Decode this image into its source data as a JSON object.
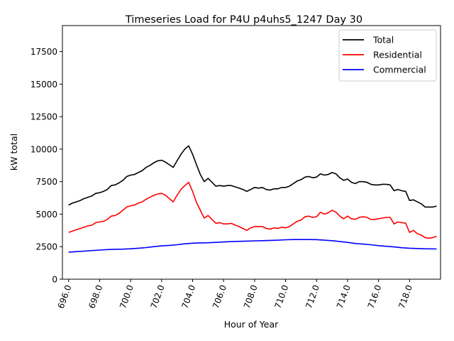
{
  "chart_data": {
    "type": "line",
    "title": "Timeseries Load for P4U p4uhs5_1247  Day 30",
    "xlabel": "Hour of Year",
    "ylabel": "kW total",
    "xlim": [
      695.6,
      720.0
    ],
    "ylim": [
      0,
      19500
    ],
    "xticks": [
      696,
      698,
      700,
      702,
      704,
      706,
      708,
      710,
      712,
      714,
      716,
      718
    ],
    "xtick_labels": [
      "696.0",
      "698.0",
      "700.0",
      "702.0",
      "704.0",
      "706.0",
      "708.0",
      "710.0",
      "712.0",
      "714.0",
      "716.0",
      "718.0"
    ],
    "yticks": [
      0,
      2500,
      5000,
      7500,
      10000,
      12500,
      15000,
      17500
    ],
    "ytick_labels": [
      "0",
      "2500",
      "5000",
      "7500",
      "10000",
      "12500",
      "15000",
      "17500"
    ],
    "legend_position": "top-right",
    "grid": false,
    "series": [
      {
        "name": "Total",
        "color": "#000000",
        "points": [
          [
            696.0,
            5700
          ],
          [
            696.25,
            5850
          ],
          [
            696.5,
            5950
          ],
          [
            696.75,
            6050
          ],
          [
            697.0,
            6200
          ],
          [
            697.25,
            6300
          ],
          [
            697.5,
            6400
          ],
          [
            697.75,
            6600
          ],
          [
            698.0,
            6650
          ],
          [
            698.25,
            6750
          ],
          [
            698.5,
            6900
          ],
          [
            698.75,
            7200
          ],
          [
            699.0,
            7250
          ],
          [
            699.25,
            7400
          ],
          [
            699.5,
            7600
          ],
          [
            699.75,
            7900
          ],
          [
            700.0,
            8000
          ],
          [
            700.25,
            8050
          ],
          [
            700.5,
            8200
          ],
          [
            700.75,
            8350
          ],
          [
            701.0,
            8600
          ],
          [
            701.25,
            8750
          ],
          [
            701.5,
            8950
          ],
          [
            701.75,
            9100
          ],
          [
            702.0,
            9150
          ],
          [
            702.25,
            9000
          ],
          [
            702.5,
            8800
          ],
          [
            702.75,
            8600
          ],
          [
            703.0,
            9100
          ],
          [
            703.25,
            9600
          ],
          [
            703.5,
            10000
          ],
          [
            703.75,
            10250
          ],
          [
            704.0,
            9600
          ],
          [
            704.25,
            8800
          ],
          [
            704.5,
            8050
          ],
          [
            704.75,
            7500
          ],
          [
            705.0,
            7750
          ],
          [
            705.25,
            7450
          ],
          [
            705.5,
            7150
          ],
          [
            705.75,
            7200
          ],
          [
            706.0,
            7150
          ],
          [
            706.25,
            7200
          ],
          [
            706.5,
            7200
          ],
          [
            706.75,
            7100
          ],
          [
            707.0,
            7000
          ],
          [
            707.25,
            6900
          ],
          [
            707.5,
            6750
          ],
          [
            707.75,
            6900
          ],
          [
            708.0,
            7050
          ],
          [
            708.25,
            7000
          ],
          [
            708.5,
            7050
          ],
          [
            708.75,
            6900
          ],
          [
            709.0,
            6850
          ],
          [
            709.25,
            6950
          ],
          [
            709.5,
            6950
          ],
          [
            709.75,
            7050
          ],
          [
            710.0,
            7050
          ],
          [
            710.25,
            7150
          ],
          [
            710.5,
            7350
          ],
          [
            710.75,
            7550
          ],
          [
            711.0,
            7650
          ],
          [
            711.25,
            7850
          ],
          [
            711.5,
            7900
          ],
          [
            711.75,
            7800
          ],
          [
            712.0,
            7850
          ],
          [
            712.25,
            8100
          ],
          [
            712.5,
            8000
          ],
          [
            712.75,
            8050
          ],
          [
            713.0,
            8200
          ],
          [
            713.25,
            8100
          ],
          [
            713.5,
            7800
          ],
          [
            713.75,
            7600
          ],
          [
            714.0,
            7700
          ],
          [
            714.25,
            7450
          ],
          [
            714.5,
            7350
          ],
          [
            714.75,
            7500
          ],
          [
            715.0,
            7500
          ],
          [
            715.25,
            7450
          ],
          [
            715.5,
            7300
          ],
          [
            715.75,
            7250
          ],
          [
            716.0,
            7250
          ],
          [
            716.25,
            7300
          ],
          [
            716.5,
            7300
          ],
          [
            716.75,
            7250
          ],
          [
            717.0,
            6800
          ],
          [
            717.25,
            6900
          ],
          [
            717.5,
            6800
          ],
          [
            717.75,
            6750
          ],
          [
            718.0,
            6050
          ],
          [
            718.25,
            6100
          ],
          [
            718.5,
            5950
          ],
          [
            718.75,
            5800
          ],
          [
            719.0,
            5550
          ],
          [
            719.25,
            5550
          ],
          [
            719.5,
            5550
          ],
          [
            719.75,
            5620
          ]
        ]
      },
      {
        "name": "Residential",
        "color": "#ff0000",
        "points": [
          [
            696.0,
            3600
          ],
          [
            696.25,
            3700
          ],
          [
            696.5,
            3800
          ],
          [
            696.75,
            3900
          ],
          [
            697.0,
            4000
          ],
          [
            697.25,
            4100
          ],
          [
            697.5,
            4150
          ],
          [
            697.75,
            4350
          ],
          [
            698.0,
            4400
          ],
          [
            698.25,
            4450
          ],
          [
            698.5,
            4600
          ],
          [
            698.75,
            4850
          ],
          [
            699.0,
            4900
          ],
          [
            699.25,
            5050
          ],
          [
            699.5,
            5300
          ],
          [
            699.75,
            5550
          ],
          [
            700.0,
            5650
          ],
          [
            700.25,
            5700
          ],
          [
            700.5,
            5850
          ],
          [
            700.75,
            5950
          ],
          [
            701.0,
            6150
          ],
          [
            701.25,
            6300
          ],
          [
            701.5,
            6450
          ],
          [
            701.75,
            6550
          ],
          [
            702.0,
            6600
          ],
          [
            702.25,
            6450
          ],
          [
            702.5,
            6200
          ],
          [
            702.75,
            5950
          ],
          [
            703.0,
            6450
          ],
          [
            703.25,
            6900
          ],
          [
            703.5,
            7200
          ],
          [
            703.75,
            7450
          ],
          [
            704.0,
            6750
          ],
          [
            704.25,
            5900
          ],
          [
            704.5,
            5300
          ],
          [
            704.75,
            4700
          ],
          [
            705.0,
            4900
          ],
          [
            705.25,
            4600
          ],
          [
            705.5,
            4300
          ],
          [
            705.75,
            4350
          ],
          [
            706.0,
            4250
          ],
          [
            706.25,
            4250
          ],
          [
            706.5,
            4300
          ],
          [
            706.75,
            4150
          ],
          [
            707.0,
            4050
          ],
          [
            707.25,
            3900
          ],
          [
            707.5,
            3750
          ],
          [
            707.75,
            3950
          ],
          [
            708.0,
            4050
          ],
          [
            708.25,
            4050
          ],
          [
            708.5,
            4050
          ],
          [
            708.75,
            3900
          ],
          [
            709.0,
            3850
          ],
          [
            709.25,
            3950
          ],
          [
            709.5,
            3900
          ],
          [
            709.75,
            4000
          ],
          [
            710.0,
            3950
          ],
          [
            710.25,
            4050
          ],
          [
            710.5,
            4250
          ],
          [
            710.75,
            4450
          ],
          [
            711.0,
            4550
          ],
          [
            711.25,
            4800
          ],
          [
            711.5,
            4850
          ],
          [
            711.75,
            4750
          ],
          [
            712.0,
            4800
          ],
          [
            712.25,
            5150
          ],
          [
            712.5,
            5000
          ],
          [
            712.75,
            5100
          ],
          [
            713.0,
            5300
          ],
          [
            713.25,
            5150
          ],
          [
            713.5,
            4850
          ],
          [
            713.75,
            4650
          ],
          [
            714.0,
            4850
          ],
          [
            714.25,
            4650
          ],
          [
            714.5,
            4600
          ],
          [
            714.75,
            4750
          ],
          [
            715.0,
            4800
          ],
          [
            715.25,
            4750
          ],
          [
            715.5,
            4600
          ],
          [
            715.75,
            4600
          ],
          [
            716.0,
            4650
          ],
          [
            716.25,
            4700
          ],
          [
            716.5,
            4750
          ],
          [
            716.75,
            4750
          ],
          [
            717.0,
            4250
          ],
          [
            717.25,
            4400
          ],
          [
            717.5,
            4350
          ],
          [
            717.75,
            4300
          ],
          [
            718.0,
            3600
          ],
          [
            718.25,
            3750
          ],
          [
            718.5,
            3500
          ],
          [
            718.75,
            3400
          ],
          [
            719.0,
            3200
          ],
          [
            719.25,
            3150
          ],
          [
            719.5,
            3200
          ],
          [
            719.75,
            3300
          ]
        ]
      },
      {
        "name": "Commercial",
        "color": "#0000ff",
        "points": [
          [
            696.0,
            2080
          ],
          [
            696.5,
            2120
          ],
          [
            697.0,
            2160
          ],
          [
            697.5,
            2200
          ],
          [
            698.0,
            2240
          ],
          [
            698.5,
            2280
          ],
          [
            699.0,
            2300
          ],
          [
            699.5,
            2310
          ],
          [
            700.0,
            2340
          ],
          [
            700.5,
            2380
          ],
          [
            701.0,
            2430
          ],
          [
            701.5,
            2500
          ],
          [
            702.0,
            2560
          ],
          [
            702.5,
            2600
          ],
          [
            703.0,
            2650
          ],
          [
            703.5,
            2720
          ],
          [
            704.0,
            2770
          ],
          [
            704.5,
            2790
          ],
          [
            705.0,
            2800
          ],
          [
            705.5,
            2830
          ],
          [
            706.0,
            2860
          ],
          [
            706.5,
            2890
          ],
          [
            707.0,
            2910
          ],
          [
            707.5,
            2930
          ],
          [
            708.0,
            2950
          ],
          [
            708.5,
            2960
          ],
          [
            709.0,
            2980
          ],
          [
            709.5,
            3000
          ],
          [
            710.0,
            3030
          ],
          [
            710.5,
            3050
          ],
          [
            711.0,
            3050
          ],
          [
            711.5,
            3050
          ],
          [
            712.0,
            3040
          ],
          [
            712.5,
            3000
          ],
          [
            713.0,
            2960
          ],
          [
            713.5,
            2900
          ],
          [
            714.0,
            2830
          ],
          [
            714.5,
            2750
          ],
          [
            715.0,
            2700
          ],
          [
            715.5,
            2650
          ],
          [
            716.0,
            2580
          ],
          [
            716.5,
            2530
          ],
          [
            717.0,
            2480
          ],
          [
            717.5,
            2420
          ],
          [
            718.0,
            2380
          ],
          [
            718.5,
            2360
          ],
          [
            719.0,
            2340
          ],
          [
            719.5,
            2330
          ],
          [
            719.75,
            2320
          ]
        ]
      }
    ]
  }
}
